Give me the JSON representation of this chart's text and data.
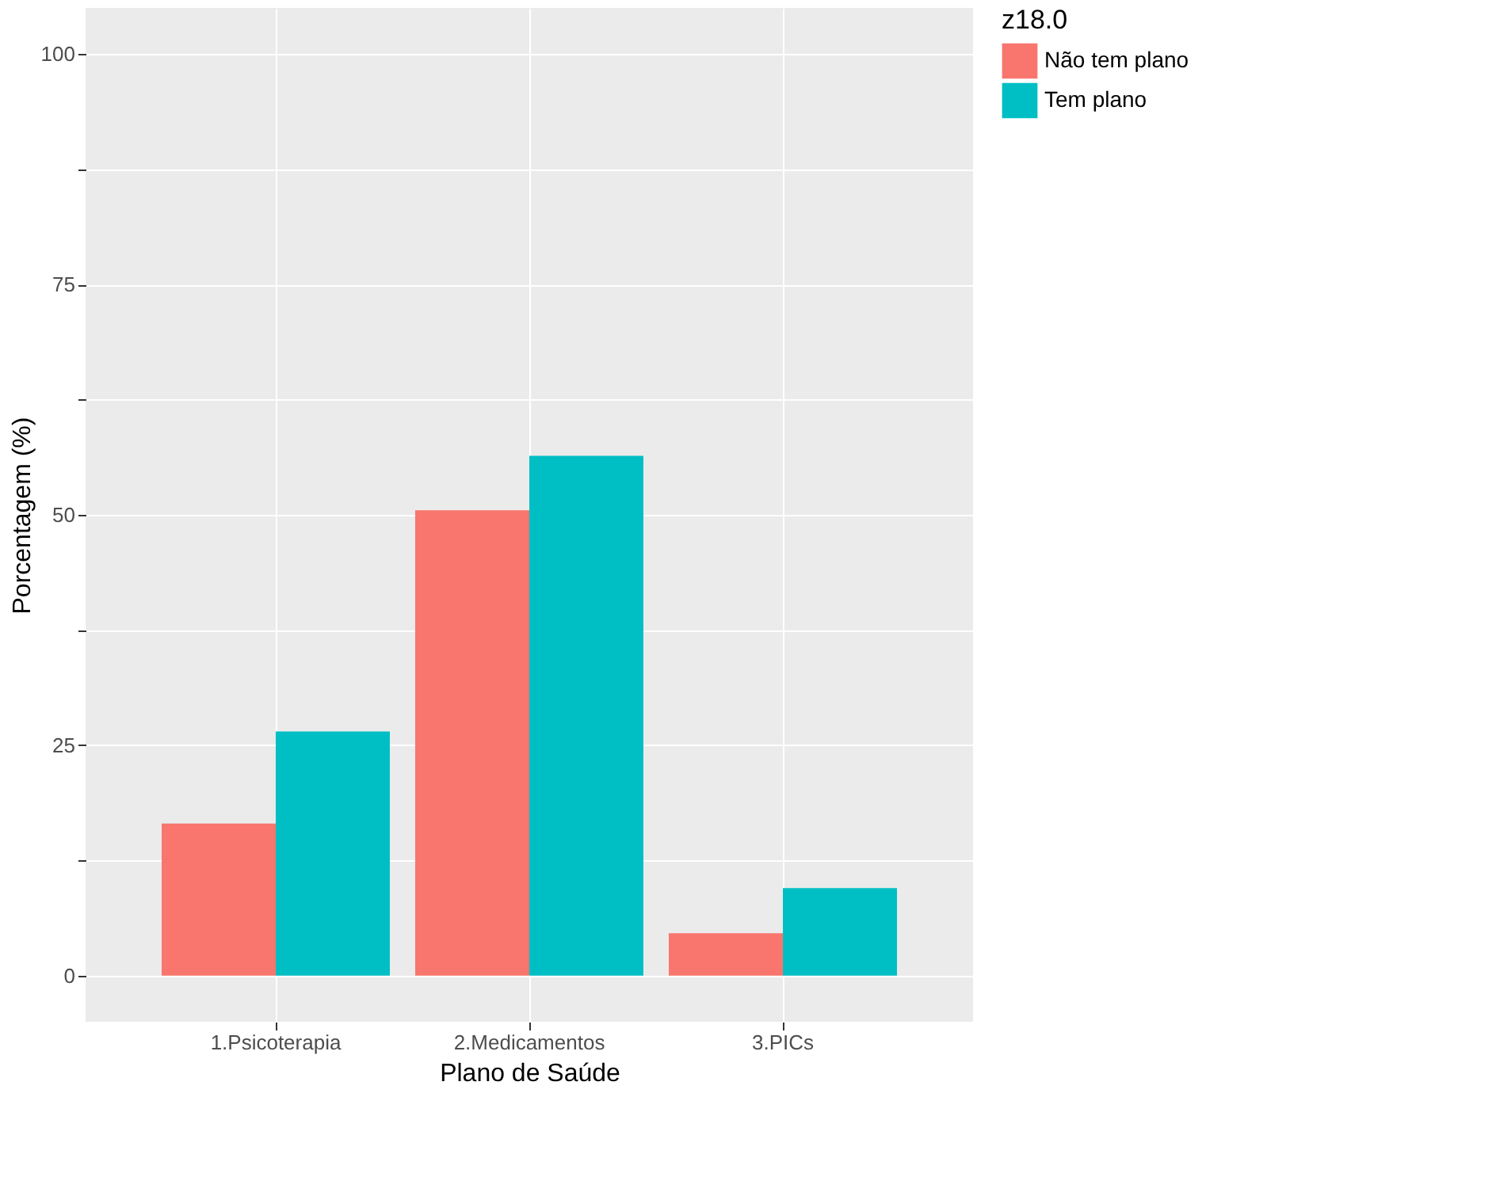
{
  "chart_data": {
    "type": "bar",
    "xlabel": "Plano de Saúde",
    "ylabel": "Porcentagem (%)",
    "legend_title": "z18.0",
    "categories": [
      "1.Psicoterapia",
      "2.Medicamentos",
      "3.PICs"
    ],
    "series": [
      {
        "name": "Não tem plano",
        "color": "#f8766d",
        "values": [
          16.5,
          50.5,
          4.6
        ]
      },
      {
        "name": "Tem plano",
        "color": "#00bfc4",
        "values": [
          26.5,
          56.4,
          9.5
        ]
      }
    ],
    "ylim": [
      -5,
      105
    ],
    "yticks": [
      0,
      {
        "value": 12.5,
        "label": null
      },
      25,
      {
        "value": 37.5,
        "label": null
      },
      50,
      {
        "value": 62.5,
        "label": null
      },
      75,
      {
        "value": 87.5,
        "label": null
      },
      100
    ],
    "grid": true,
    "legend": "right"
  }
}
